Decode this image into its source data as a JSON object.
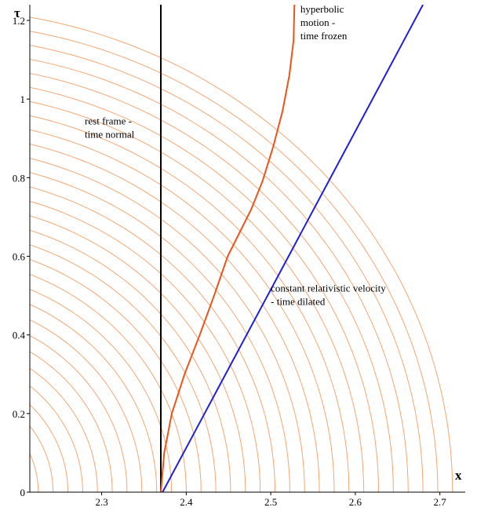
{
  "chart_data": {
    "type": "line",
    "xlabel": "x",
    "ylabel": "τ",
    "xlim": [
      2.215,
      2.73
    ],
    "ylim": [
      0,
      1.24
    ],
    "x_ticks": [
      "2.3",
      "2.4",
      "2.5",
      "2.6",
      "2.7"
    ],
    "y_ticks": [
      "0",
      "0.2",
      "0.4",
      "0.6",
      "0.8",
      "1",
      "1.2"
    ],
    "grid": false,
    "background_curves": {
      "description": "family of concentric circular arcs (light orange)",
      "color": "#f2a774",
      "center": [
        2.1,
        0
      ],
      "radius_min": 0.125,
      "radius_max": 0.63,
      "radius_step": 0.0175
    },
    "series": [
      {
        "key": "rest",
        "color": "#000000",
        "x": [
          2.37,
          2.37
        ],
        "y": [
          0,
          1.24
        ]
      },
      {
        "key": "constant_velocity",
        "color": "#1f1fd6",
        "x": [
          2.372,
          2.68
        ],
        "y": [
          0,
          1.24
        ]
      },
      {
        "key": "hyperbolic",
        "color": "#e8551a",
        "x": [
          2.37,
          2.374,
          2.383,
          2.398,
          2.416,
          2.433,
          2.449,
          2.463,
          2.477,
          2.49,
          2.503,
          2.514,
          2.522,
          2.527,
          2.528
        ],
        "y": [
          0,
          0.1,
          0.2,
          0.3,
          0.4,
          0.5,
          0.6,
          0.66,
          0.72,
          0.79,
          0.88,
          0.97,
          1.06,
          1.15,
          1.24
        ]
      }
    ],
    "annotations": [
      {
        "key": "rest",
        "lines": [
          "rest frame -",
          "time normal"
        ],
        "x": 2.28,
        "y": 0.935
      },
      {
        "key": "hyperbolic",
        "lines": [
          "hyperbolic",
          "motion -",
          "time frozen"
        ],
        "x": 2.535,
        "y": 1.22
      },
      {
        "key": "constant_velocity",
        "lines": [
          "constant relativistic velocity",
          "- time dilated"
        ],
        "x": 2.5,
        "y": 0.51
      }
    ]
  }
}
